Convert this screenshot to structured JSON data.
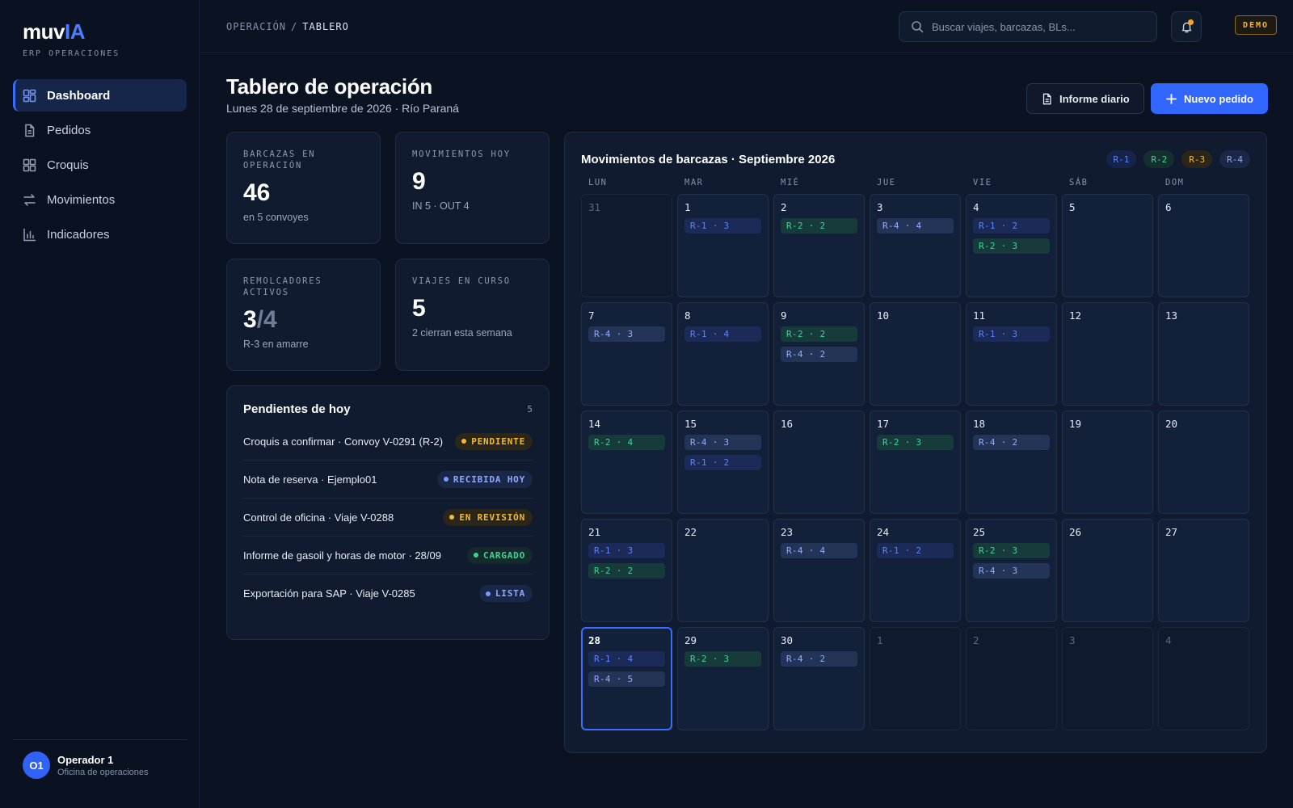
{
  "brand": {
    "name_main": "muv",
    "name_accent": "IA",
    "subtitle": "ERP OPERACIONES"
  },
  "sidebar": {
    "items": [
      {
        "label": "Dashboard",
        "icon": "dashboard-icon",
        "active": true
      },
      {
        "label": "Pedidos",
        "icon": "document-icon",
        "active": false
      },
      {
        "label": "Croquis",
        "icon": "grid-icon",
        "active": false
      },
      {
        "label": "Movimientos",
        "icon": "arrows-exchange-icon",
        "active": false
      },
      {
        "label": "Indicadores",
        "icon": "bar-chart-icon",
        "active": false
      }
    ],
    "user": {
      "initials": "O1",
      "name": "Operador 1",
      "role": "Oficina de operaciones"
    }
  },
  "topbar": {
    "breadcrumb": {
      "root": "OPERACIÓN",
      "separator": "/",
      "current": "TABLERO"
    },
    "search_placeholder": "Buscar viajes, barcazas, BLs...",
    "demo_badge": "DEMO"
  },
  "header": {
    "title": "Tablero de operación",
    "subtitle": "Lunes 28 de septiembre de 2026 · Río Paraná",
    "btn_report": "Informe diario",
    "btn_new": "Nuevo pedido"
  },
  "stats": {
    "barcazas": {
      "label": "BARCAZAS EN OPERACIÓN",
      "value": "46",
      "note": "en 5 convoyes"
    },
    "movimientos": {
      "label": "MOVIMIENTOS HOY",
      "value": "9",
      "note": "IN 5 · OUT 4"
    },
    "remolcadores": {
      "label": "REMOLCADORES ACTIVOS",
      "value": "3",
      "total": "/4",
      "note": "R-3 en amarre"
    },
    "viajes": {
      "label": "VIAJES EN CURSO",
      "value": "5",
      "note": "2 cierran esta semana"
    }
  },
  "pending": {
    "title": "Pendientes de hoy",
    "count": "5",
    "items": [
      {
        "text": "Croquis a confirmar · Convoy V-0291 (R-2)",
        "status": "PENDIENTE",
        "tone": "amber"
      },
      {
        "text": "Nota de reserva · Ejemplo01",
        "status": "RECIBIDA HOY",
        "tone": "blue"
      },
      {
        "text": "Control de oficina · Viaje V-0288",
        "status": "EN REVISIÓN",
        "tone": "amber"
      },
      {
        "text": "Informe de gasoil y horas de motor · 28/09",
        "status": "CARGADO",
        "tone": "green"
      },
      {
        "text": "Exportación para SAP · Viaje V-0285",
        "status": "LISTA",
        "tone": "blue"
      }
    ]
  },
  "calendar": {
    "title": "Movimientos de barcazas · Septiembre 2026",
    "legend": [
      {
        "label": "R-1",
        "cls": "r1"
      },
      {
        "label": "R-2",
        "cls": "r2"
      },
      {
        "label": "R-3",
        "cls": "r3"
      },
      {
        "label": "R-4",
        "cls": "r4"
      }
    ],
    "weekdays": [
      "LUN",
      "MAR",
      "MIÉ",
      "JUE",
      "VIE",
      "SÁB",
      "DOM"
    ],
    "days": [
      {
        "n": "31",
        "muted": true,
        "chips": []
      },
      {
        "n": "1",
        "chips": [
          [
            "R-1 · 3",
            "r1"
          ]
        ]
      },
      {
        "n": "2",
        "chips": [
          [
            "R-2 · 2",
            "r2"
          ]
        ]
      },
      {
        "n": "3",
        "chips": [
          [
            "R-4 · 4",
            "r4"
          ]
        ]
      },
      {
        "n": "4",
        "chips": [
          [
            "R-1 · 2",
            "r1"
          ],
          [
            "R-2 · 3",
            "r2"
          ]
        ]
      },
      {
        "n": "5",
        "chips": []
      },
      {
        "n": "6",
        "chips": []
      },
      {
        "n": "7",
        "chips": [
          [
            "R-4 · 3",
            "r4"
          ]
        ]
      },
      {
        "n": "8",
        "chips": [
          [
            "R-1 · 4",
            "r1"
          ]
        ]
      },
      {
        "n": "9",
        "chips": [
          [
            "R-2 · 2",
            "r2"
          ],
          [
            "R-4 · 2",
            "r4"
          ]
        ]
      },
      {
        "n": "10",
        "chips": []
      },
      {
        "n": "11",
        "chips": [
          [
            "R-1 · 3",
            "r1"
          ]
        ]
      },
      {
        "n": "12",
        "chips": []
      },
      {
        "n": "13",
        "chips": []
      },
      {
        "n": "14",
        "chips": [
          [
            "R-2 · 4",
            "r2"
          ]
        ]
      },
      {
        "n": "15",
        "chips": [
          [
            "R-4 · 3",
            "r4"
          ],
          [
            "R-1 · 2",
            "r1"
          ]
        ]
      },
      {
        "n": "16",
        "chips": []
      },
      {
        "n": "17",
        "chips": [
          [
            "R-2 · 3",
            "r2"
          ]
        ]
      },
      {
        "n": "18",
        "chips": [
          [
            "R-4 · 2",
            "r4"
          ]
        ]
      },
      {
        "n": "19",
        "chips": []
      },
      {
        "n": "20",
        "chips": []
      },
      {
        "n": "21",
        "chips": [
          [
            "R-1 · 3",
            "r1"
          ],
          [
            "R-2 · 2",
            "r2"
          ]
        ]
      },
      {
        "n": "22",
        "chips": []
      },
      {
        "n": "23",
        "chips": [
          [
            "R-4 · 4",
            "r4"
          ]
        ]
      },
      {
        "n": "24",
        "chips": [
          [
            "R-1 · 2",
            "r1"
          ]
        ]
      },
      {
        "n": "25",
        "chips": [
          [
            "R-2 · 3",
            "r2"
          ],
          [
            "R-4 · 3",
            "r4"
          ]
        ]
      },
      {
        "n": "26",
        "chips": []
      },
      {
        "n": "27",
        "chips": []
      },
      {
        "n": "28",
        "today": true,
        "chips": [
          [
            "R-1 · 4",
            "r1"
          ],
          [
            "R-4 · 5",
            "r4"
          ]
        ]
      },
      {
        "n": "29",
        "chips": [
          [
            "R-2 · 3",
            "r2"
          ]
        ]
      },
      {
        "n": "30",
        "chips": [
          [
            "R-4 · 2",
            "r4"
          ]
        ]
      },
      {
        "n": "1",
        "muted": true,
        "chips": []
      },
      {
        "n": "2",
        "muted": true,
        "chips": []
      },
      {
        "n": "3",
        "muted": true,
        "chips": []
      },
      {
        "n": "4",
        "muted": true,
        "chips": []
      }
    ]
  },
  "colors": {
    "accent": "#3166ff",
    "r1": "#5b84ff",
    "r2": "#3ad49f",
    "r3": "#f5b82e",
    "r4": "#94acff"
  }
}
